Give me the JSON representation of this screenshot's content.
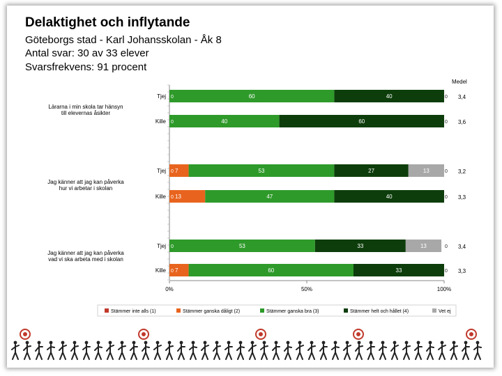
{
  "header": {
    "title": "Delaktighet och inflytande",
    "school": "Göteborgs stad - Karl Johansskolan - Åk 8",
    "respondents": "Antal svar: 30 av 33 elever",
    "response_rate": "Svarsfrekvens: 91 procent"
  },
  "colors": {
    "s1": "#c0392b",
    "s2": "#e8641e",
    "s3": "#2e9a2a",
    "s4": "#0d3d0b",
    "s5": "#a8a8a8"
  },
  "chart_data": {
    "type": "bar",
    "orientation": "horizontal-stacked",
    "medel_label": "Medel",
    "xlim": [
      0,
      100
    ],
    "x_ticks": [
      "0%",
      "50%",
      "100%"
    ],
    "series_names": [
      "Stämmer inte alls (1)",
      "Stämmer ganska dåligt (2)",
      "Stämmer ganska bra (3)",
      "Stämmer helt och hållet (4)",
      "Vet ej"
    ],
    "groups": [
      {
        "question": [
          "Lärarna i min skola tar hänsyn",
          "till elevernas åsikter"
        ],
        "bars": [
          {
            "label": "Tjej",
            "values": [
              0,
              0,
              60,
              40,
              0
            ],
            "medel": "3,4"
          },
          {
            "label": "Kille",
            "values": [
              0,
              0,
              40,
              60,
              0
            ],
            "medel": "3,6"
          }
        ]
      },
      {
        "question": [
          "Jag känner att jag kan påverka",
          "hur vi arbetar i skolan"
        ],
        "bars": [
          {
            "label": "Tjej",
            "values": [
              0,
              7,
              53,
              27,
              13
            ],
            "medel": "3,2"
          },
          {
            "label": "Kille",
            "values": [
              0,
              13,
              47,
              40,
              0
            ],
            "medel": "3,3"
          }
        ]
      },
      {
        "question": [
          "Jag känner att jag kan påverka",
          "vad vi ska arbeta med i skolan"
        ],
        "bars": [
          {
            "label": "Tjej",
            "values": [
              0,
              0,
              53,
              33,
              13
            ],
            "medel": "3,4"
          },
          {
            "label": "Kille",
            "values": [
              0,
              7,
              60,
              33,
              0
            ],
            "medel": "3,3"
          }
        ]
      }
    ]
  }
}
